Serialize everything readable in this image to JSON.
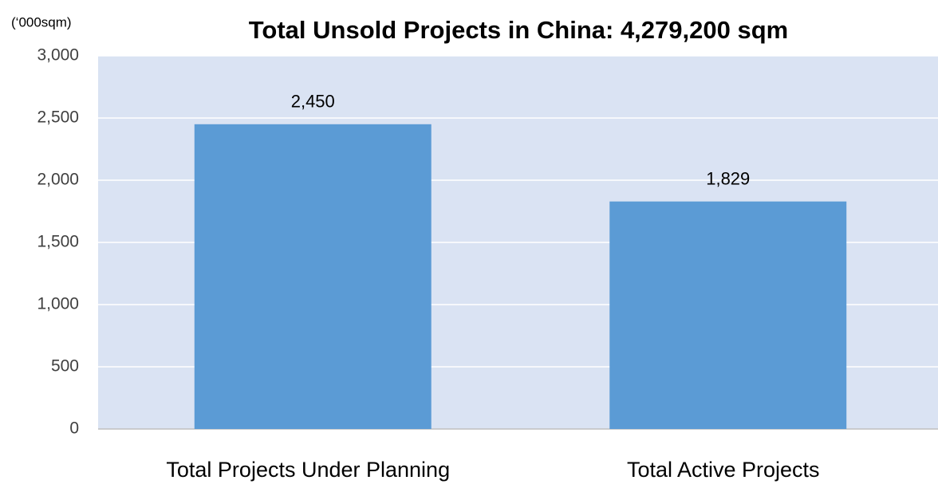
{
  "chart_data": {
    "type": "bar",
    "title": "Total Unsold Projects in China: 4,279,200 sqm",
    "y_label": "(‘000sqm)",
    "categories": [
      "Total Projects Under Planning",
      "Total Active Projects"
    ],
    "values": [
      2450,
      1829
    ],
    "value_labels": [
      "2,450",
      "1,829"
    ],
    "color": "#5b9bd5",
    "ylim": [
      0,
      3000
    ],
    "yticks": [
      0,
      {
        "value": 500,
        "label": "500"
      },
      {
        "value": 1000,
        "label": "1,000"
      },
      {
        "value": 1500,
        "label": "1,500"
      },
      {
        "value": 2000,
        "label": "2,000"
      },
      {
        "value": 2500,
        "label": "2,500"
      },
      {
        "value": 3000,
        "label": "3,000"
      }
    ],
    "grid": true
  }
}
